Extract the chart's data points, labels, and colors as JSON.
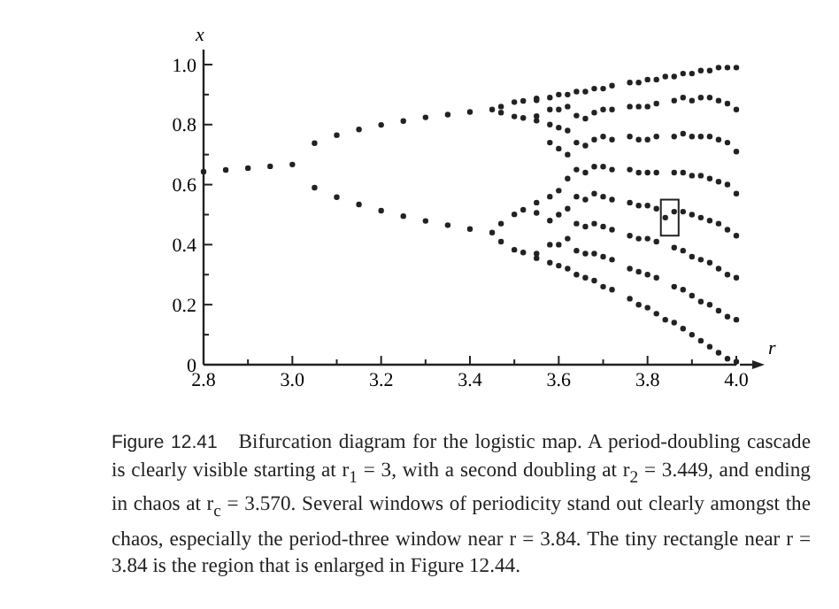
{
  "chart_data": {
    "type": "scatter",
    "xlabel": "r",
    "ylabel": "x",
    "annotations": [
      "Figure 12.41",
      "Bifurcation diagram for the logistic map. A period-doubling cascade is clearly visible starting at r$_{1}$ = 3, with a second doubling at r$_{2}$ = 3.449, and ending in chaos at r$_{c}$ = 3.570. Several windows of periodicity stand out clearly amongst the chaos, especially the period-three window near r = 3.84. The tiny rectangle near r = 3.84 is the region that is enlarged in Figure 12.44."
    ],
    "xlim": [
      2.8,
      4.0
    ],
    "ylim": [
      0,
      1.05
    ],
    "xticks": [
      2.8,
      {
        "value": 2.9,
        "label": null
      },
      {
        "value": 3,
        "label": "3.0"
      },
      {
        "value": 3.1,
        "label": null
      },
      3.2,
      {
        "value": 3.3,
        "label": null
      },
      3.4,
      {
        "value": 3.5,
        "label": null
      },
      3.6,
      {
        "value": 3.7,
        "label": null
      },
      3.8,
      {
        "value": 3.9,
        "label": null
      },
      {
        "value": 4,
        "label": "4.0"
      }
    ],
    "yticks": [
      0,
      {
        "value": 0.1,
        "label": null
      },
      0.2,
      {
        "value": 0.3,
        "label": null
      },
      0.4,
      {
        "value": 0.5,
        "label": null
      },
      0.6,
      {
        "value": 0.7,
        "label": null
      },
      0.8,
      {
        "value": 0.9,
        "label": null
      },
      {
        "value": 1,
        "label": "1.0"
      }
    ],
    "marker": "circle",
    "grid": false,
    "series": [
      {
        "color": "#222222",
        "x": [
          2.8,
          2.85,
          2.9,
          2.95,
          3.0,
          3.05,
          3.05,
          3.1,
          3.1,
          3.15,
          3.15,
          3.2,
          3.2,
          3.25,
          3.25,
          3.3,
          3.3,
          3.35,
          3.35,
          3.4,
          3.4,
          3.45,
          3.45,
          3.47,
          3.47,
          3.47,
          3.47,
          3.5,
          3.5,
          3.5,
          3.5,
          3.52,
          3.52,
          3.52,
          3.52,
          3.55,
          3.55,
          3.55,
          3.55,
          3.55,
          3.55,
          3.55,
          3.55,
          3.58,
          3.58,
          3.58,
          3.58,
          3.58,
          3.58,
          3.58,
          3.58,
          3.6,
          3.6,
          3.6,
          3.6,
          3.6,
          3.6,
          3.6,
          3.6,
          3.62,
          3.62,
          3.62,
          3.62,
          3.62,
          3.62,
          3.62,
          3.62,
          3.64,
          3.64,
          3.64,
          3.64,
          3.64,
          3.64,
          3.64,
          3.64,
          3.66,
          3.66,
          3.66,
          3.66,
          3.66,
          3.66,
          3.66,
          3.66,
          3.68,
          3.68,
          3.68,
          3.68,
          3.68,
          3.68,
          3.68,
          3.68,
          3.7,
          3.7,
          3.7,
          3.7,
          3.7,
          3.7,
          3.7,
          3.7,
          3.72,
          3.72,
          3.72,
          3.72,
          3.72,
          3.72,
          3.72,
          3.72,
          3.76,
          3.76,
          3.76,
          3.76,
          3.76,
          3.76,
          3.76,
          3.76,
          3.78,
          3.78,
          3.78,
          3.78,
          3.78,
          3.78,
          3.78,
          3.78,
          3.8,
          3.8,
          3.8,
          3.8,
          3.8,
          3.8,
          3.8,
          3.8,
          3.82,
          3.82,
          3.82,
          3.82,
          3.82,
          3.82,
          3.82,
          3.82,
          3.84,
          3.84,
          3.84,
          3.86,
          3.86,
          3.86,
          3.86,
          3.86,
          3.86,
          3.86,
          3.86,
          3.88,
          3.88,
          3.88,
          3.88,
          3.88,
          3.88,
          3.88,
          3.88,
          3.9,
          3.9,
          3.9,
          3.9,
          3.9,
          3.9,
          3.9,
          3.9,
          3.92,
          3.92,
          3.92,
          3.92,
          3.92,
          3.92,
          3.92,
          3.92,
          3.94,
          3.94,
          3.94,
          3.94,
          3.94,
          3.94,
          3.94,
          3.94,
          3.96,
          3.96,
          3.96,
          3.96,
          3.96,
          3.96,
          3.96,
          3.96,
          3.98,
          3.98,
          3.98,
          3.98,
          3.98,
          3.98,
          3.98,
          3.98,
          4.0,
          4.0,
          4.0,
          4.0,
          4.0,
          4.0,
          4.0,
          4.0
        ],
        "values": [
          0.643,
          0.649,
          0.655,
          0.661,
          0.667,
          0.738,
          0.59,
          0.765,
          0.558,
          0.784,
          0.534,
          0.799,
          0.513,
          0.812,
          0.495,
          0.824,
          0.479,
          0.833,
          0.465,
          0.842,
          0.452,
          0.85,
          0.44,
          0.86,
          0.84,
          0.47,
          0.41,
          0.875,
          0.827,
          0.501,
          0.383,
          0.879,
          0.822,
          0.516,
          0.374,
          0.887,
          0.881,
          0.828,
          0.813,
          0.54,
          0.506,
          0.37,
          0.355,
          0.34,
          0.4,
          0.48,
          0.56,
          0.74,
          0.8,
          0.85,
          0.89,
          0.33,
          0.4,
          0.5,
          0.58,
          0.72,
          0.79,
          0.85,
          0.9,
          0.32,
          0.42,
          0.52,
          0.62,
          0.7,
          0.78,
          0.86,
          0.9,
          0.3,
          0.38,
          0.47,
          0.56,
          0.65,
          0.74,
          0.83,
          0.91,
          0.29,
          0.37,
          0.46,
          0.55,
          0.64,
          0.73,
          0.82,
          0.91,
          0.28,
          0.37,
          0.47,
          0.57,
          0.66,
          0.75,
          0.84,
          0.92,
          0.26,
          0.36,
          0.46,
          0.56,
          0.66,
          0.76,
          0.85,
          0.92,
          0.25,
          0.35,
          0.45,
          0.55,
          0.65,
          0.75,
          0.85,
          0.93,
          0.22,
          0.32,
          0.43,
          0.54,
          0.65,
          0.76,
          0.86,
          0.94,
          0.2,
          0.31,
          0.42,
          0.53,
          0.64,
          0.75,
          0.86,
          0.94,
          0.19,
          0.3,
          0.42,
          0.53,
          0.64,
          0.75,
          0.86,
          0.95,
          0.17,
          0.29,
          0.41,
          0.52,
          0.64,
          0.76,
          0.87,
          0.95,
          0.15,
          0.49,
          0.96,
          0.14,
          0.26,
          0.39,
          0.51,
          0.64,
          0.76,
          0.88,
          0.96,
          0.12,
          0.25,
          0.38,
          0.51,
          0.64,
          0.77,
          0.89,
          0.97,
          0.1,
          0.23,
          0.36,
          0.5,
          0.63,
          0.76,
          0.88,
          0.97,
          0.08,
          0.21,
          0.35,
          0.49,
          0.63,
          0.76,
          0.89,
          0.98,
          0.06,
          0.2,
          0.34,
          0.48,
          0.62,
          0.76,
          0.89,
          0.98,
          0.04,
          0.18,
          0.32,
          0.47,
          0.61,
          0.75,
          0.88,
          0.99,
          0.02,
          0.16,
          0.3,
          0.45,
          0.6,
          0.74,
          0.87,
          0.99,
          0.01,
          0.15,
          0.29,
          0.43,
          0.57,
          0.71,
          0.85,
          0.99
        ]
      }
    ]
  }
}
